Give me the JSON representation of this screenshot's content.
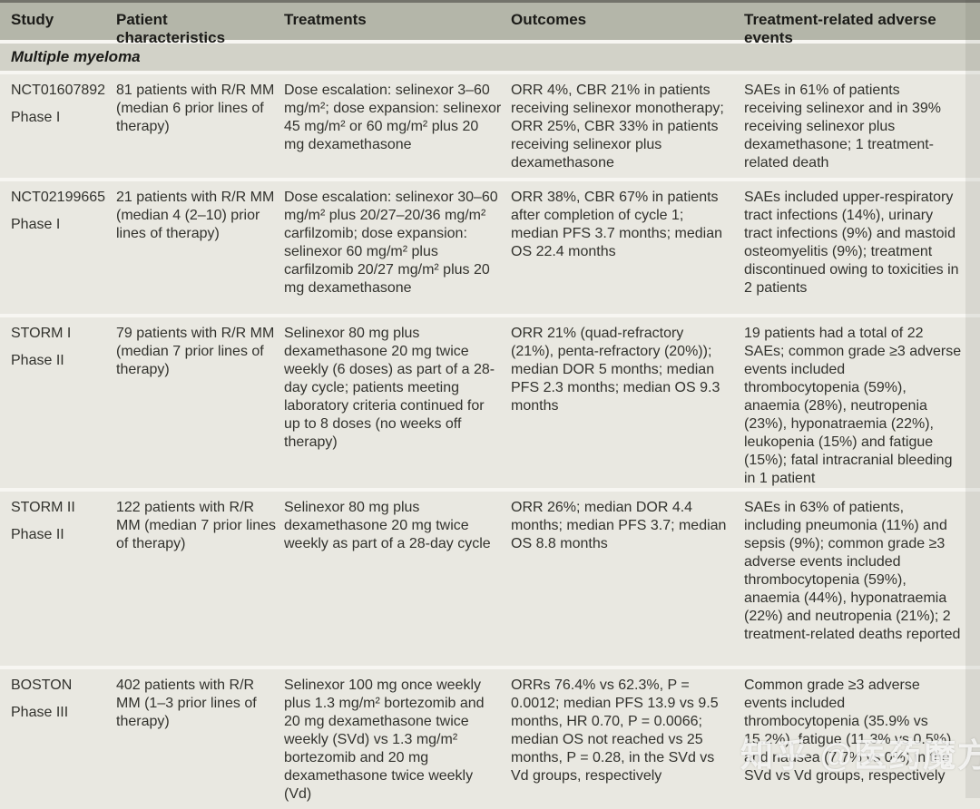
{
  "table": {
    "columns": [
      "Study",
      "Patient characteristics",
      "Treatments",
      "Outcomes",
      "Treatment-related adverse events"
    ],
    "section_header": "Multiple myeloma",
    "rows": [
      {
        "study_id": "NCT01607892",
        "phase": "Phase I",
        "patients": "81 patients with R/R MM (median 6 prior lines of therapy)",
        "treatments": "Dose escalation: selinexor 3–60 mg/m²; dose expansion: selinexor 45 mg/m² or 60 mg/m² plus 20 mg dexamethasone",
        "outcomes": "ORR 4%, CBR 21% in patients receiving selinexor monotherapy; ORR 25%, CBR 33% in patients receiving selinexor plus dexamethasone",
        "adverse_events": "SAEs in 61% of patients receiving selinexor and in 39% receiving selinexor plus dexamethasone; 1 treatment-related death"
      },
      {
        "study_id": "NCT02199665",
        "phase": "Phase I",
        "patients": "21 patients with R/R MM (median 4 (2–10) prior lines of therapy)",
        "treatments": "Dose escalation: selinexor 30–60 mg/m² plus 20/27–20/36 mg/m² carfilzomib; dose expansion: selinexor 60 mg/m² plus carfilzomib 20/27 mg/m² plus 20 mg dexamethasone",
        "outcomes": "ORR 38%, CBR 67% in patients after completion of cycle 1; median PFS 3.7 months; median OS 22.4 months",
        "adverse_events": "SAEs included upper-respiratory tract infections (14%), urinary tract infections (9%) and mastoid osteomyelitis (9%); treatment discontinued owing to toxicities in 2 patients"
      },
      {
        "study_id": "STORM I",
        "phase": "Phase II",
        "patients": "79 patients with R/R MM (median 7 prior lines of therapy)",
        "treatments": "Selinexor 80 mg plus dexamethasone 20 mg twice weekly (6 doses) as part of a 28-day cycle; patients meeting laboratory criteria continued for up to 8 doses (no weeks off therapy)",
        "outcomes": "ORR 21% (quad-refractory (21%), penta-refractory (20%)); median DOR 5 months; median PFS 2.3 months; median OS 9.3 months",
        "adverse_events": "19 patients had a total of 22 SAEs; common grade ≥3 adverse events included thrombocytopenia (59%), anaemia (28%), neutropenia (23%), hyponatraemia (22%), leukopenia (15%) and fatigue (15%); fatal intracranial bleeding in 1 patient"
      },
      {
        "study_id": "STORM II",
        "phase": "Phase II",
        "patients": "122 patients with R/R MM (median 7 prior lines of therapy)",
        "treatments": "Selinexor 80 mg plus dexamethasone 20 mg twice weekly as part of a 28-day cycle",
        "outcomes": "ORR 26%; median DOR 4.4 months; median PFS 3.7; median OS 8.8 months",
        "adverse_events": "SAEs in 63% of patients, including pneumonia (11%) and sepsis (9%); common grade ≥3 adverse events included thrombocytopenia (59%), anaemia (44%), hyponatraemia (22%) and neutropenia (21%); 2 treatment-related deaths reported"
      },
      {
        "study_id": "BOSTON",
        "phase": "Phase III",
        "patients": "402 patients with R/R MM (1–3 prior lines of therapy)",
        "treatments": "Selinexor 100 mg once weekly plus 1.3 mg/m² bortezomib and 20 mg dexamethasone twice weekly (SVd) vs 1.3 mg/m² bortezomib and 20 mg dexamethasone twice weekly (Vd)",
        "outcomes": "ORRs 76.4% vs 62.3%, P = 0.0012; median PFS 13.9 vs 9.5 months, HR 0.70, P = 0.0066; median OS not reached vs 25 months, P = 0.28, in the SVd vs Vd groups, respectively",
        "adverse_events": "Common grade ≥3 adverse events included thrombocytopenia (35.9% vs 15.2%), fatigue (11.3% vs 0.5%) and nausea (7.7% vs 0%) in the SVd vs Vd groups, respectively"
      }
    ]
  },
  "watermark": "知乎 @医药魔方",
  "colors": {
    "header_bg": "#b4b6a9",
    "section_bg": "#d2d2c8",
    "row_bg": "#e9e8e1",
    "header_text": "#1b1b18",
    "body_text": "#32322d",
    "top_border": "#73736b",
    "watermark_color": "rgba(255,255,255,0.78)"
  }
}
